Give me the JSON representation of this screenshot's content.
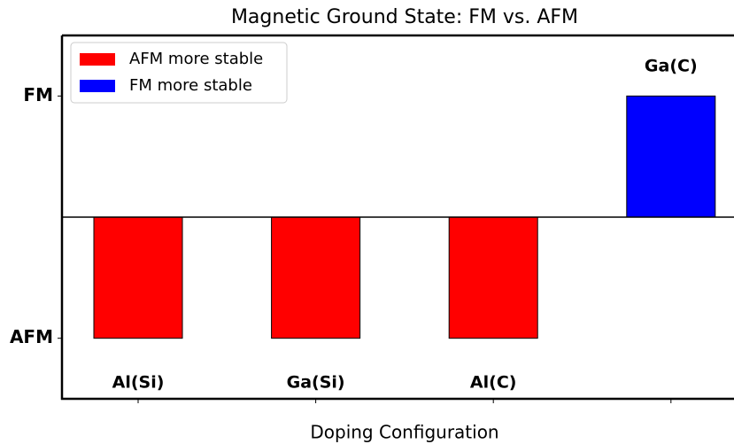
{
  "chart_data": {
    "type": "bar",
    "title": "Magnetic Ground State: FM vs. AFM",
    "xlabel": "Doping Configuration",
    "categories": [
      "Al(Si)",
      "Ga(Si)",
      "Al(C)",
      "Ga(C)"
    ],
    "values": [
      -1,
      -1,
      -1,
      1
    ],
    "colors": [
      "#ff0000",
      "#ff0000",
      "#ff0000",
      "#0000ff"
    ],
    "ylim": [
      -1.5,
      1.5
    ],
    "yticks": [
      {
        "value": 1,
        "label": "FM"
      },
      {
        "value": -1,
        "label": "AFM"
      }
    ],
    "reference_line": 0,
    "legend": [
      {
        "name": "AFM more stable",
        "color": "#ff0000"
      },
      {
        "name": "FM more stable",
        "color": "#0000ff"
      }
    ],
    "legend_position": "upper left"
  }
}
